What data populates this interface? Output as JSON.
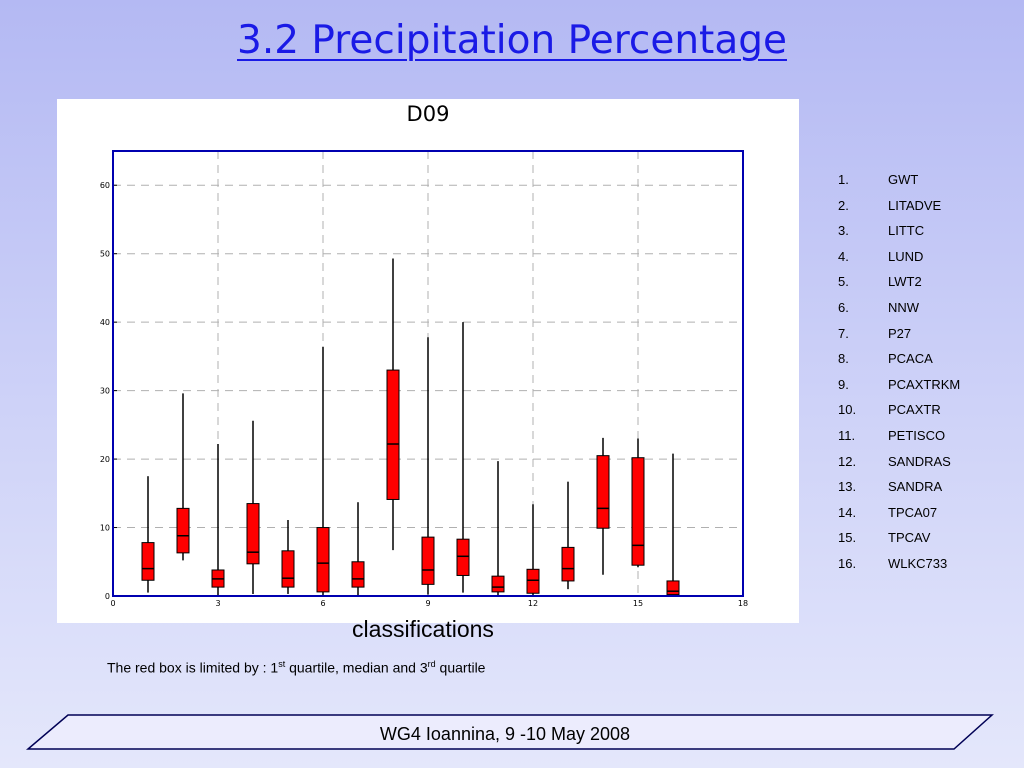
{
  "slide": {
    "title": "3.2 Precipitation Percentage",
    "caption": {
      "prefix": "The red box is limited by : 1",
      "sup1": "st",
      "mid": " quartile, median and 3",
      "sup2": "rd",
      "suffix": " quartile"
    },
    "footer": "WG4 Ioannina, 9 -10 May 2008"
  },
  "legend": [
    {
      "num": "1.",
      "label": "GWT"
    },
    {
      "num": "2.",
      "label": "LITADVE"
    },
    {
      "num": "3.",
      "label": "LITTC"
    },
    {
      "num": "4.",
      "label": "LUND"
    },
    {
      "num": "5.",
      "label": "LWT2"
    },
    {
      "num": "6.",
      "label": "NNW"
    },
    {
      "num": "7.",
      "label": "P27"
    },
    {
      "num": "8.",
      "label": "PCACA"
    },
    {
      "num": "9.",
      "label": "PCAXTRKM"
    },
    {
      "num": "10.",
      "label": "PCAXTR"
    },
    {
      "num": "11.",
      "label": "PETISCO"
    },
    {
      "num": "12.",
      "label": "SANDRAS"
    },
    {
      "num": "13.",
      "label": "SANDRA"
    },
    {
      "num": "14.",
      "label": "TPCA07"
    },
    {
      "num": "15.",
      "label": "TPCAV"
    },
    {
      "num": "16.",
      "label": "WLKC733"
    }
  ],
  "chart_data": {
    "type": "box",
    "title": "D09",
    "xlabel": "classifications",
    "ylabel": "",
    "xlim": [
      0,
      18
    ],
    "ylim": [
      0,
      65
    ],
    "xticks": [
      0,
      3,
      6,
      9,
      12,
      15,
      18
    ],
    "yticks": [
      0,
      10,
      20,
      30,
      40,
      50,
      60
    ],
    "grid": true,
    "colors": {
      "box": "#ff0000",
      "frame": "#0000b0",
      "grid": "#b0b0b0"
    },
    "boxes": [
      {
        "x": 1,
        "min": 0.5,
        "q1": 2.3,
        "median": 4.0,
        "q3": 7.8,
        "max": 17.5
      },
      {
        "x": 2,
        "min": 5.2,
        "q1": 6.3,
        "median": 8.8,
        "q3": 12.8,
        "max": 29.6
      },
      {
        "x": 3,
        "min": 0.1,
        "q1": 1.3,
        "median": 2.5,
        "q3": 3.8,
        "max": 22.2
      },
      {
        "x": 4,
        "min": 0.3,
        "q1": 4.7,
        "median": 6.4,
        "q3": 13.5,
        "max": 25.6
      },
      {
        "x": 5,
        "min": 0.3,
        "q1": 1.3,
        "median": 2.6,
        "q3": 6.6,
        "max": 11.1
      },
      {
        "x": 6,
        "min": 0.0,
        "q1": 0.6,
        "median": 4.8,
        "q3": 10.0,
        "max": 36.4
      },
      {
        "x": 7,
        "min": 0.1,
        "q1": 1.3,
        "median": 2.5,
        "q3": 5.0,
        "max": 13.7
      },
      {
        "x": 8,
        "min": 6.7,
        "q1": 14.1,
        "median": 22.2,
        "q3": 33.0,
        "max": 49.3
      },
      {
        "x": 9,
        "min": 0.2,
        "q1": 1.7,
        "median": 3.8,
        "q3": 8.6,
        "max": 37.8
      },
      {
        "x": 10,
        "min": 0.5,
        "q1": 3.0,
        "median": 5.8,
        "q3": 8.3,
        "max": 40.0
      },
      {
        "x": 11,
        "min": 0.0,
        "q1": 0.6,
        "median": 1.3,
        "q3": 2.9,
        "max": 19.7
      },
      {
        "x": 12,
        "min": 0.0,
        "q1": 0.4,
        "median": 2.3,
        "q3": 3.9,
        "max": 13.4
      },
      {
        "x": 13,
        "min": 1.0,
        "q1": 2.2,
        "median": 4.0,
        "q3": 7.1,
        "max": 16.7
      },
      {
        "x": 14,
        "min": 3.1,
        "q1": 9.9,
        "median": 12.8,
        "q3": 20.5,
        "max": 23.1
      },
      {
        "x": 15,
        "min": 4.2,
        "q1": 4.5,
        "median": 7.4,
        "q3": 20.2,
        "max": 23.0
      },
      {
        "x": 16,
        "min": 0.0,
        "q1": 0.2,
        "median": 0.7,
        "q3": 2.2,
        "max": 20.8
      }
    ]
  }
}
